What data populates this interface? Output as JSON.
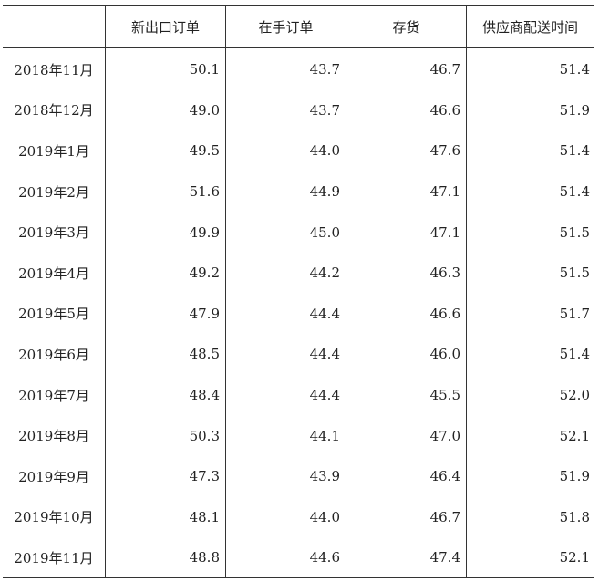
{
  "table": {
    "headers": [
      "",
      "新出口订单",
      "在手订单",
      "存货",
      "供应商配送时间"
    ],
    "rows": [
      [
        "2018年11月",
        "50.1",
        "43.7",
        "46.7",
        "51.4"
      ],
      [
        "2018年12月",
        "49.0",
        "43.7",
        "46.6",
        "51.9"
      ],
      [
        "2019年1月",
        "49.5",
        "44.0",
        "47.6",
        "51.4"
      ],
      [
        "2019年2月",
        "51.6",
        "44.9",
        "47.1",
        "51.4"
      ],
      [
        "2019年3月",
        "49.9",
        "45.0",
        "47.1",
        "51.5"
      ],
      [
        "2019年4月",
        "49.2",
        "44.2",
        "46.3",
        "51.5"
      ],
      [
        "2019年5月",
        "47.9",
        "44.4",
        "46.6",
        "51.7"
      ],
      [
        "2019年6月",
        "48.5",
        "44.4",
        "46.0",
        "51.4"
      ],
      [
        "2019年7月",
        "48.4",
        "44.4",
        "45.5",
        "52.0"
      ],
      [
        "2019年8月",
        "50.3",
        "44.1",
        "47.0",
        "52.1"
      ],
      [
        "2019年9月",
        "47.3",
        "43.9",
        "46.4",
        "51.9"
      ],
      [
        "2019年10月",
        "48.1",
        "44.0",
        "46.7",
        "51.8"
      ],
      [
        "2019年11月",
        "48.8",
        "44.6",
        "47.4",
        "52.1"
      ]
    ]
  }
}
